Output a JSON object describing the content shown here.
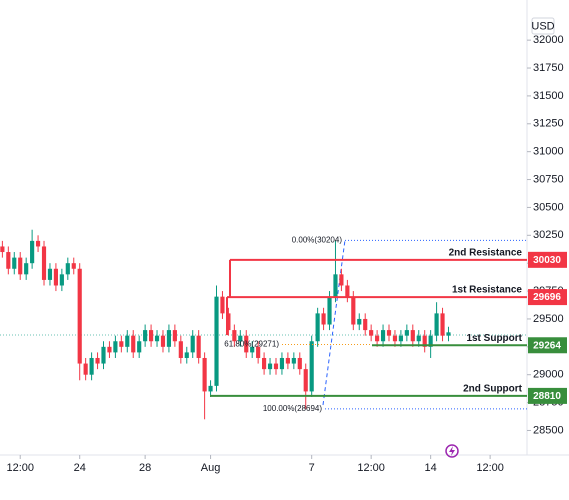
{
  "chart_data": {
    "type": "candlestick",
    "currency": "USD",
    "open": [
      30150,
      30100,
      29950,
      30050,
      29900,
      30000,
      30200,
      30150,
      29850,
      29950,
      29800,
      29900,
      30000,
      29950,
      29100,
      29000,
      29150,
      29100,
      29250,
      29200,
      29300,
      29250,
      29350,
      29200,
      29300,
      29400,
      29300,
      29350,
      29250,
      29400,
      29300,
      29150,
      29200,
      29350,
      29150,
      28850,
      28900,
      29700,
      29550,
      29400,
      29300,
      29350,
      29200,
      29250,
      29150,
      29050,
      29100,
      29050,
      29150,
      29100,
      29150,
      29050,
      28850,
      29300,
      29550,
      29450,
      29700,
      29900,
      29800,
      29700,
      29450,
      29500,
      29400,
      29350,
      29300,
      29400,
      29350,
      29300,
      29350,
      29400,
      29300,
      29350,
      29250,
      29350,
      29550,
      29350
    ],
    "high": [
      30200,
      30150,
      30100,
      30100,
      30050,
      30300,
      30250,
      30200,
      30000,
      30000,
      29950,
      30050,
      30050,
      30000,
      29150,
      29200,
      29200,
      29300,
      29300,
      29350,
      29350,
      29400,
      29400,
      29350,
      29450,
      29450,
      29400,
      29400,
      29450,
      29450,
      29350,
      29250,
      29400,
      29400,
      29200,
      28950,
      29800,
      29750,
      29600,
      29450,
      29400,
      29400,
      29300,
      29300,
      29200,
      29150,
      29150,
      29200,
      29200,
      29200,
      29200,
      29100,
      29350,
      29600,
      29600,
      29750,
      30204,
      29950,
      29850,
      29750,
      29550,
      29550,
      29450,
      29400,
      29450,
      29450,
      29400,
      29400,
      29450,
      29450,
      29400,
      29400,
      29400,
      29650,
      29600,
      29430
    ],
    "low": [
      30050,
      29900,
      29900,
      29850,
      29850,
      29950,
      30100,
      29800,
      29800,
      29750,
      29750,
      29850,
      29900,
      28950,
      28950,
      28950,
      29050,
      29050,
      29150,
      29150,
      29200,
      29200,
      29150,
      29150,
      29250,
      29250,
      29250,
      29200,
      29200,
      29250,
      29100,
      29100,
      29150,
      29100,
      28600,
      28800,
      28850,
      29500,
      29350,
      29250,
      29250,
      29150,
      29150,
      29100,
      29000,
      29000,
      29000,
      29000,
      29050,
      29050,
      29000,
      28694,
      28800,
      29250,
      29400,
      29400,
      29650,
      29750,
      29650,
      29400,
      29400,
      29350,
      29300,
      29250,
      29250,
      29300,
      29250,
      29250,
      29300,
      29250,
      29250,
      29200,
      29150,
      29300,
      29300,
      29300
    ],
    "close": [
      30100,
      29950,
      30050,
      29900,
      30000,
      30200,
      30150,
      29850,
      29950,
      29800,
      29900,
      30000,
      29950,
      29100,
      29000,
      29150,
      29100,
      29250,
      29200,
      29300,
      29250,
      29350,
      29200,
      29300,
      29400,
      29300,
      29350,
      29250,
      29400,
      29300,
      29150,
      29200,
      29350,
      29150,
      28850,
      28900,
      29700,
      29550,
      29400,
      29300,
      29350,
      29200,
      29250,
      29150,
      29050,
      29100,
      29050,
      29150,
      29100,
      29150,
      29050,
      28850,
      29300,
      29550,
      29450,
      29700,
      29900,
      29800,
      29700,
      29450,
      29500,
      29400,
      29350,
      29300,
      29400,
      29350,
      29300,
      29350,
      29400,
      29300,
      29350,
      29250,
      29350,
      29550,
      29350,
      29380
    ],
    "up_color": "#089981",
    "down_color": "#f23645",
    "xlim": [
      -0.4,
      88.2
    ],
    "xticks": [
      {
        "value": 3,
        "label": "12:00"
      },
      {
        "value": 13,
        "label": "24"
      },
      {
        "value": 24,
        "label": "28"
      },
      {
        "value": 35,
        "label": "Aug"
      },
      {
        "value": 52,
        "label": "7"
      },
      {
        "value": 62,
        "label": "12:00"
      },
      {
        "value": 72,
        "label": "14"
      },
      {
        "value": 82,
        "label": "12:00"
      }
    ],
    "ylim": [
      28280,
      32360
    ],
    "yticks": [
      28500,
      28750,
      29000,
      29250,
      29500,
      29750,
      30000,
      30250,
      30500,
      30750,
      31000,
      31250,
      31500,
      31750,
      32000
    ],
    "levels": [
      {
        "name": "2nd Resistance",
        "value": 30030,
        "color": "#f23645"
      },
      {
        "name": "1st Resistance",
        "value": 29696,
        "color": "#f23645"
      },
      {
        "name": "1st Support",
        "value": 29264,
        "color": "#388e3c"
      },
      {
        "name": "2nd Support",
        "value": 28810,
        "color": "#388e3c"
      }
    ],
    "fib_levels": [
      {
        "label": "0.00%(30204)",
        "value": 30204,
        "color": "#2962ff"
      },
      {
        "label": "61.80%(29271)",
        "value": 29271,
        "color": "#f59c1a"
      },
      {
        "label": "100.00%(28694)",
        "value": 28694,
        "color": "#2962ff"
      }
    ]
  }
}
